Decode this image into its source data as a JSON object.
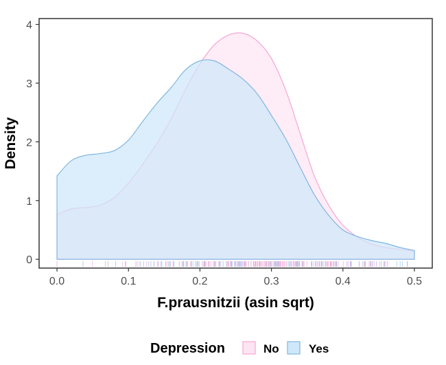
{
  "chart_data": {
    "type": "area",
    "subtype": "density",
    "title": "",
    "xlabel": "F.prausnitzii (asin sqrt)",
    "ylabel": "Density",
    "xlim": [
      -0.025,
      0.525
    ],
    "ylim": [
      -0.15,
      4.1
    ],
    "x_ticks": [
      0.0,
      0.1,
      0.2,
      0.3,
      0.4,
      0.5
    ],
    "x_tick_labels": [
      "0.0",
      "0.1",
      "0.2",
      "0.3",
      "0.4",
      "0.5"
    ],
    "y_ticks": [
      0,
      1,
      2,
      3,
      4
    ],
    "y_tick_labels": [
      "0",
      "1",
      "2",
      "3",
      "4"
    ],
    "grid": false,
    "rug": true,
    "legend": {
      "title": "Depression",
      "position": "bottom",
      "entries": [
        {
          "label": "No",
          "fill": "#fde4f3",
          "stroke": "#f3a7d4"
        },
        {
          "label": "Yes",
          "fill": "#cfe8f9",
          "stroke": "#7fb6e0"
        }
      ]
    },
    "series": [
      {
        "name": "No",
        "fill": "#fde4f3",
        "stroke": "#f3a7d4",
        "x": [
          0.0,
          0.02,
          0.04,
          0.06,
          0.08,
          0.1,
          0.12,
          0.14,
          0.16,
          0.18,
          0.2,
          0.22,
          0.24,
          0.26,
          0.28,
          0.3,
          0.32,
          0.34,
          0.36,
          0.38,
          0.4,
          0.42,
          0.44,
          0.46,
          0.48,
          0.5
        ],
        "y": [
          0.76,
          0.86,
          0.88,
          0.92,
          1.05,
          1.3,
          1.62,
          1.98,
          2.4,
          2.9,
          3.33,
          3.65,
          3.82,
          3.85,
          3.72,
          3.42,
          2.88,
          2.15,
          1.42,
          0.92,
          0.58,
          0.38,
          0.26,
          0.2,
          0.17,
          0.14
        ]
      },
      {
        "name": "Yes",
        "fill": "#cfe8f9",
        "stroke": "#7fb6e0",
        "x": [
          0.0,
          0.02,
          0.04,
          0.06,
          0.08,
          0.1,
          0.12,
          0.14,
          0.16,
          0.18,
          0.2,
          0.22,
          0.24,
          0.26,
          0.28,
          0.3,
          0.32,
          0.34,
          0.36,
          0.38,
          0.4,
          0.42,
          0.44,
          0.46,
          0.48,
          0.5
        ],
        "y": [
          1.42,
          1.68,
          1.77,
          1.8,
          1.85,
          2.03,
          2.35,
          2.66,
          2.93,
          3.23,
          3.38,
          3.38,
          3.24,
          3.07,
          2.82,
          2.45,
          2.05,
          1.57,
          1.1,
          0.75,
          0.5,
          0.39,
          0.32,
          0.27,
          0.2,
          0.15
        ]
      }
    ]
  }
}
